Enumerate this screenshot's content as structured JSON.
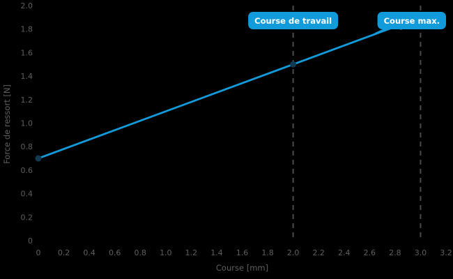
{
  "chart_data": {
    "type": "line",
    "title": "",
    "xlabel": "Course [mm]",
    "ylabel": "Force de ressort [N]",
    "xlim": [
      0,
      3.2
    ],
    "ylim": [
      0,
      2.0
    ],
    "xticks": [
      0,
      0.2,
      0.4,
      0.6,
      0.8,
      1.0,
      1.2,
      1.4,
      1.6,
      1.8,
      2.0,
      2.2,
      2.4,
      2.6,
      2.8,
      3.0,
      3.2
    ],
    "yticks": [
      0,
      0.2,
      0.4,
      0.6,
      0.8,
      1.0,
      1.2,
      1.4,
      1.6,
      1.8,
      2.0
    ],
    "grid": false,
    "legend": "none",
    "colors": {
      "background": "#000000",
      "axis_text": "#5f5f5f",
      "dashed_line": "#4b4b4b",
      "series": "#129bdb",
      "badge_bg": "#129bdb",
      "badge_text": "#ffffff",
      "marker": "#123a52"
    },
    "series": [
      {
        "color": "#129bdb",
        "points": [
          [
            0,
            0.7
          ],
          [
            2.8,
            1.82
          ]
        ]
      }
    ],
    "markers": [
      [
        0,
        0.7
      ],
      [
        2.0,
        1.5
      ]
    ],
    "annotations": [
      {
        "label": "Course de travail",
        "x": 2.0
      },
      {
        "label": "Course max.",
        "x": 3.0,
        "leader_to": [
          2.8,
          1.82
        ]
      }
    ]
  }
}
